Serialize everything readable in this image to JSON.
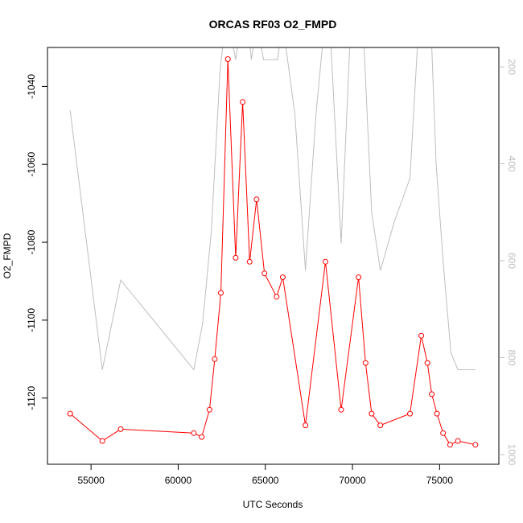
{
  "chart_data": {
    "type": "line",
    "title": "ORCAS RF03 O2_FMPD",
    "xlabel": "UTC Seconds",
    "ylabel": "O2_FMPD",
    "xlim": [
      52500,
      78400
    ],
    "ylim": [
      -1137,
      -1030
    ],
    "x_ticks": [
      55000,
      60000,
      65000,
      70000,
      75000
    ],
    "y_ticks": [
      -1040,
      -1060,
      -1080,
      -1100,
      -1120
    ],
    "y2lim": [
      1020,
      160
    ],
    "y2_ticks": [
      200,
      400,
      600,
      800,
      1000
    ],
    "grid": false,
    "legend": "none",
    "series": [
      {
        "color": "#ff0000",
        "markers": "open-circle",
        "x": [
          53800,
          55650,
          56700,
          60900,
          61350,
          61800,
          62100,
          62450,
          62850,
          63300,
          63700,
          64100,
          64500,
          64950,
          65650,
          66000,
          67300,
          68450,
          69350,
          70350,
          70750,
          71100,
          71600,
          73300,
          73950,
          74300,
          74550,
          74850,
          75200,
          75600,
          76050,
          77050
        ],
        "y": [
          -1124,
          -1131,
          -1128,
          -1129,
          -1130,
          -1123,
          -1110,
          -1093,
          -1033,
          -1084,
          -1044,
          -1085,
          -1069,
          -1088,
          -1094,
          -1089,
          -1127,
          -1085,
          -1123,
          -1089,
          -1111,
          -1124,
          -1127,
          -1124,
          -1104,
          -1111,
          -1119,
          -1124,
          -1129,
          -1132,
          -1131,
          -1132
        ]
      },
      {
        "color": "#bebebe",
        "axis": "right",
        "markers": "none",
        "x": [
          53800,
          55650,
          56700,
          60900,
          61400,
          61900,
          62400,
          62700,
          62900,
          63300,
          63600,
          64000,
          64200,
          64500,
          64900,
          65700,
          66000,
          66700,
          67300,
          67900,
          68400,
          68700,
          69350,
          69900,
          70200,
          70600,
          71100,
          71600,
          72400,
          73300,
          73800,
          74100,
          74500,
          74800,
          75200,
          75650,
          76050,
          77050
        ],
        "y": [
          290,
          825,
          640,
          825,
          730,
          540,
          210,
          110,
          110,
          185,
          110,
          110,
          185,
          110,
          185,
          185,
          110,
          300,
          620,
          300,
          110,
          110,
          565,
          110,
          110,
          110,
          500,
          620,
          520,
          430,
          110,
          110,
          110,
          400,
          600,
          790,
          825,
          825
        ]
      }
    ]
  }
}
